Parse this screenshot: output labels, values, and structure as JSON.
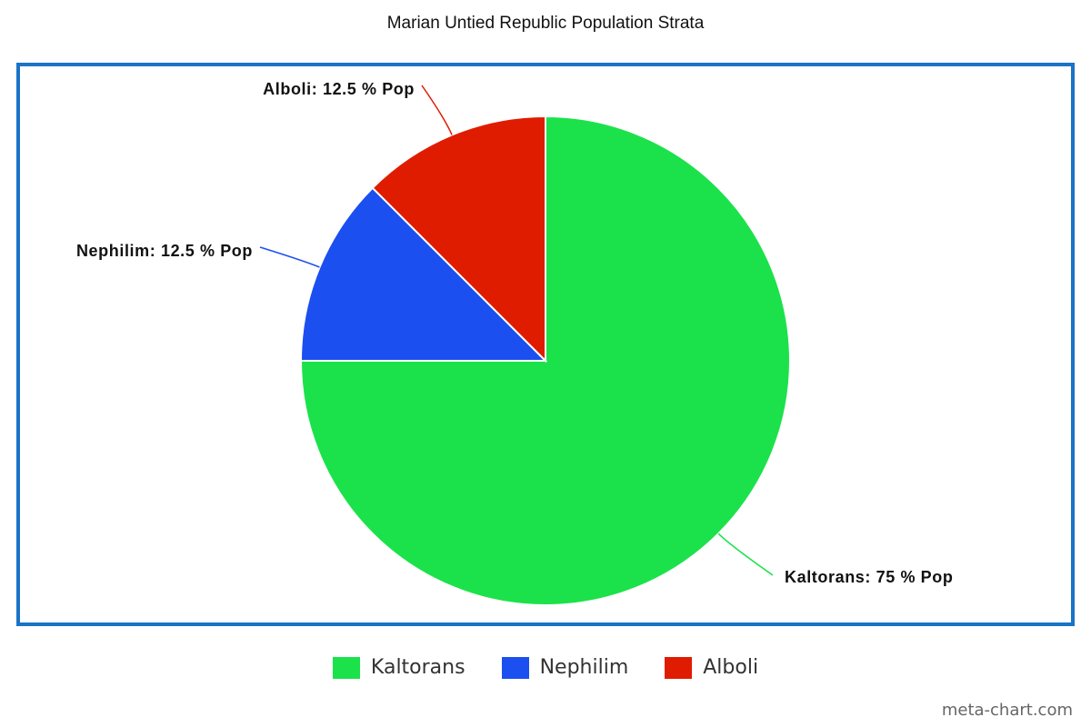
{
  "chart_data": {
    "type": "pie",
    "title": "Marian Untied Republic Population Strata",
    "categories": [
      "Kaltorans",
      "Nephilim",
      "Alboli"
    ],
    "values": [
      75,
      12.5,
      12.5
    ],
    "labels": [
      "Kaltorans: 75 % Pop",
      "Nephilim: 12.5 % Pop",
      "Alboli: 12.5 % Pop"
    ],
    "colors": [
      "#1be24a",
      "#1c4fef",
      "#e01c00"
    ],
    "legend_position": "bottom",
    "start_angle": "12 o'clock, clockwise",
    "frame_color": "#1a73c6"
  },
  "watermark": "meta-chart.com"
}
